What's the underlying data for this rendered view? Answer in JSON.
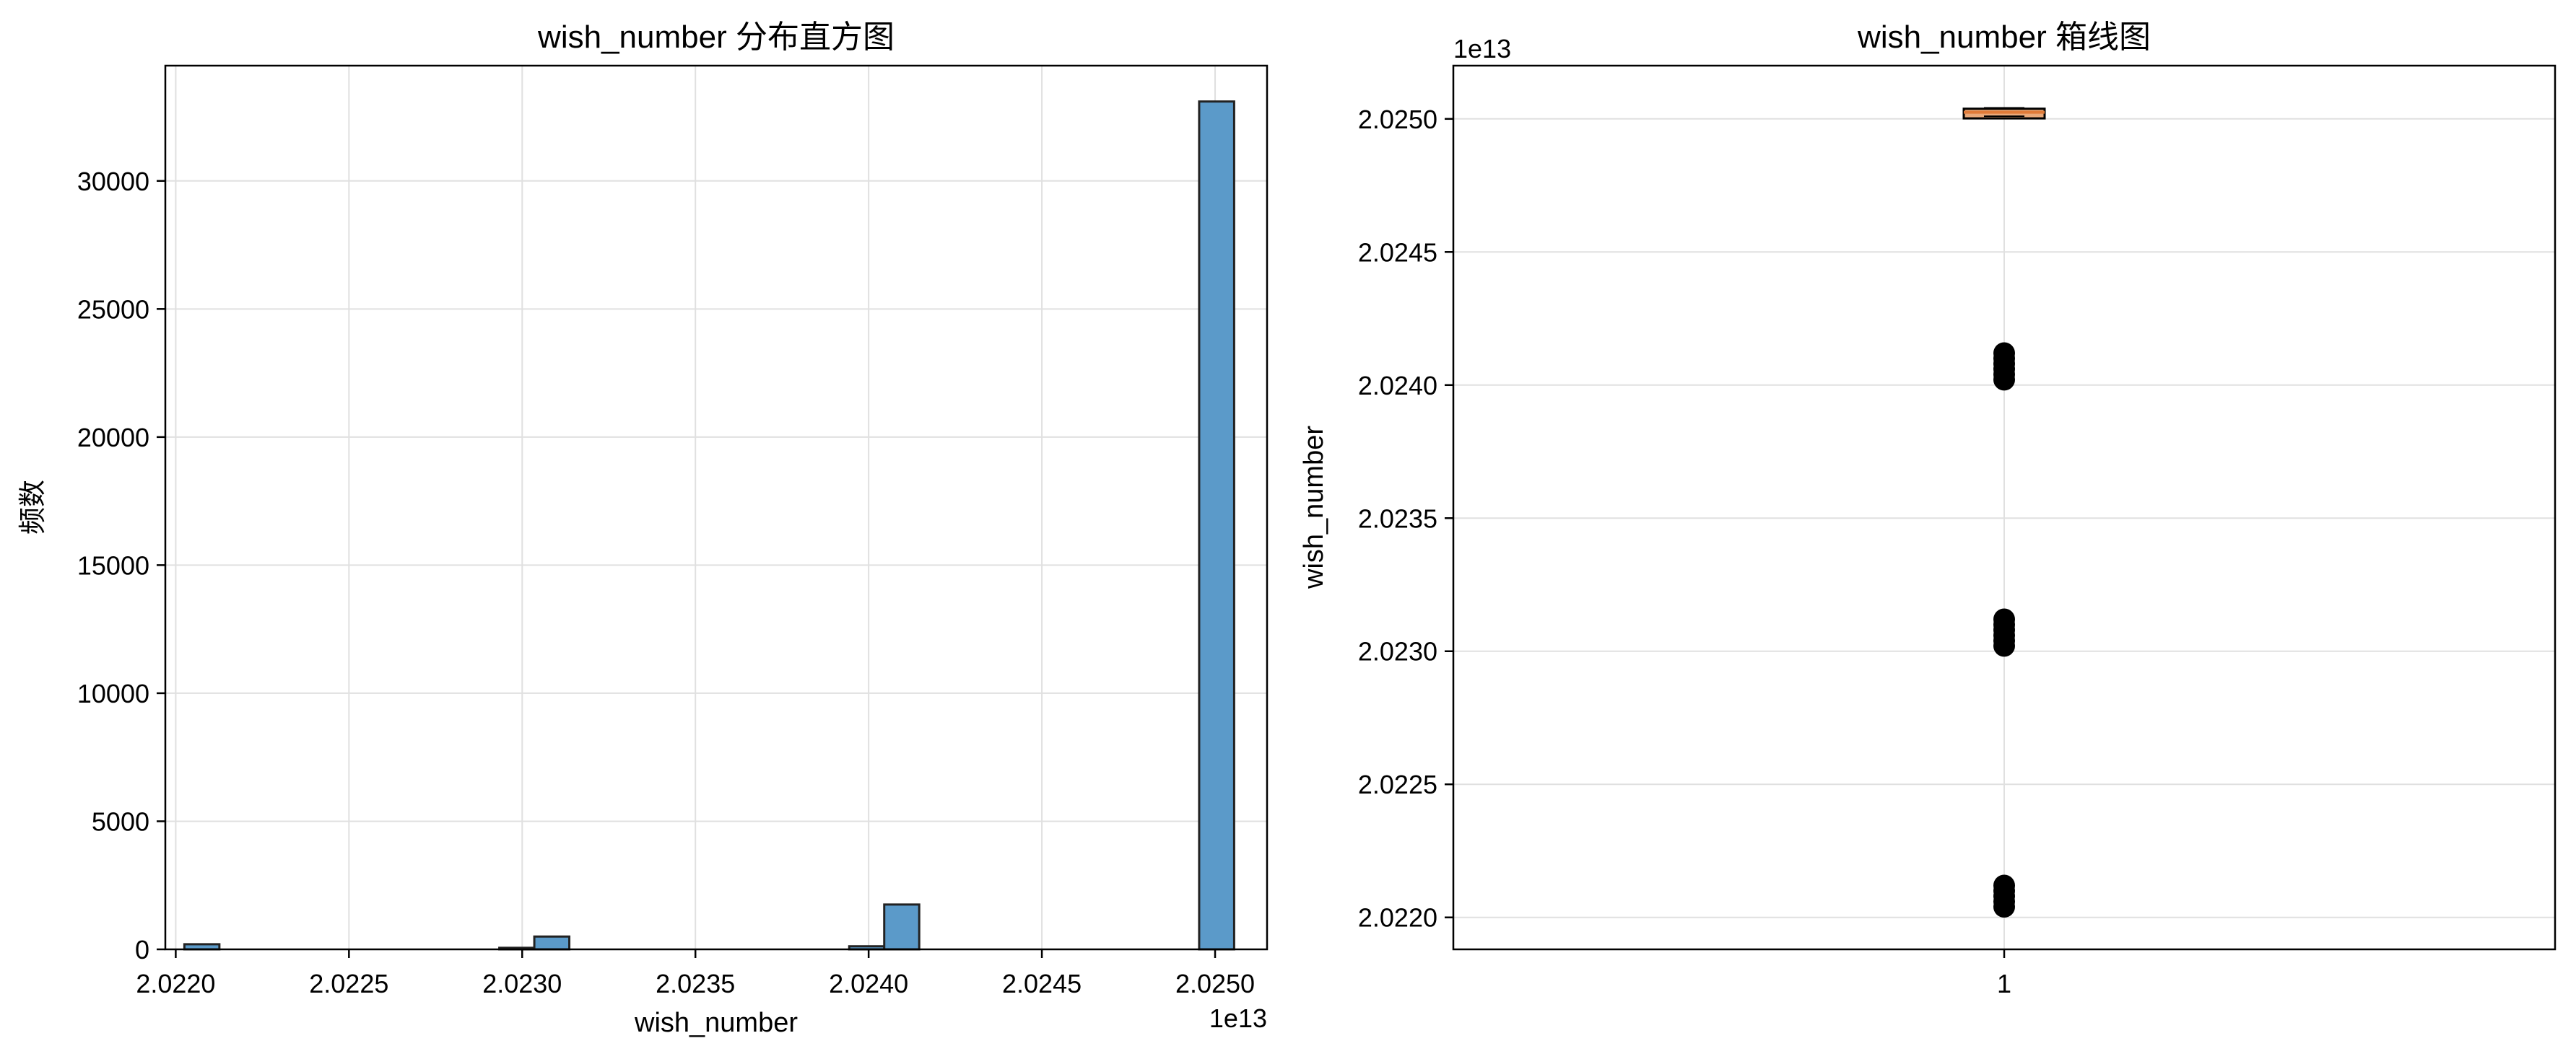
{
  "colors": {
    "hist_fill": "#5b9ac9",
    "edge": "#222222",
    "grid": "#e0e0e0",
    "box_median": "#e07b39",
    "box_face": "#e9a97a",
    "outlier": "#000000"
  },
  "chart_data": [
    {
      "type": "bar",
      "subtype": "histogram",
      "title": "wish_number 分布直方图",
      "xlabel": "wish_number",
      "ylabel": "频数",
      "x_offset_label": "1e13",
      "xlim": [
        2.02197,
        2.02515
      ],
      "ylim": [
        0,
        34500
      ],
      "x_ticks": [
        2.022,
        2.0225,
        2.023,
        2.0235,
        2.024,
        2.0245,
        2.025
      ],
      "x_tick_labels": [
        "2.0220",
        "2.0225",
        "2.0230",
        "2.0235",
        "2.0240",
        "2.0245",
        "2.0250"
      ],
      "y_ticks": [
        0,
        5000,
        10000,
        15000,
        20000,
        25000,
        30000
      ],
      "y_tick_labels": [
        "0",
        "5000",
        "10000",
        "15000",
        "20000",
        "25000",
        "30000"
      ],
      "grid": true,
      "bins": [
        {
          "x0": 2.022025,
          "x1": 2.022126,
          "value": 200
        },
        {
          "x0": 2.022934,
          "x1": 2.023035,
          "value": 60
        },
        {
          "x0": 2.023035,
          "x1": 2.023136,
          "value": 500
        },
        {
          "x0": 2.023944,
          "x1": 2.024045,
          "value": 120
        },
        {
          "x0": 2.024045,
          "x1": 2.024146,
          "value": 1750
        },
        {
          "x0": 2.024954,
          "x1": 2.025055,
          "value": 33100
        }
      ]
    },
    {
      "type": "box",
      "title": "wish_number 箱线图",
      "xlabel": "",
      "ylabel": "wish_number",
      "y_offset_label": "1e13",
      "ylim": [
        2.02188,
        2.0252
      ],
      "y_ticks": [
        2.022,
        2.0225,
        2.023,
        2.0235,
        2.024,
        2.0245,
        2.025
      ],
      "y_tick_labels": [
        "2.0220",
        "2.0225",
        "2.0230",
        "2.0235",
        "2.0240",
        "2.0245",
        "2.0250"
      ],
      "x_tick_labels": [
        "1"
      ],
      "grid": true,
      "box": {
        "q1": 2.02501,
        "median": 2.025025,
        "q3": 2.02503,
        "whisker_low": 2.02501,
        "whisker_high": 2.02504
      },
      "outliers": [
        2.02204,
        2.02206,
        2.02208,
        2.0221,
        2.02212,
        2.02302,
        2.02304,
        2.02306,
        2.02308,
        2.0231,
        2.02312,
        2.02402,
        2.02404,
        2.02406,
        2.02408,
        2.0241,
        2.02412
      ]
    }
  ]
}
